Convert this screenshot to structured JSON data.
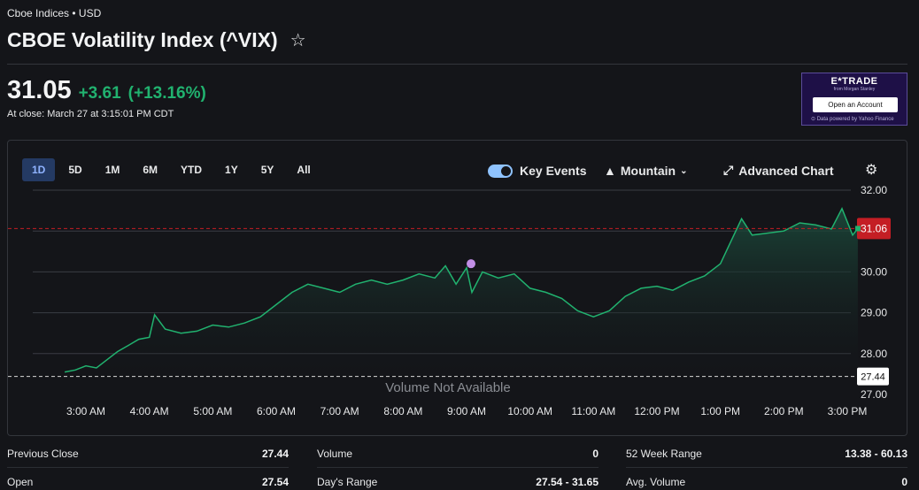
{
  "header": {
    "breadcrumb": "Cboe Indices • USD",
    "title": "CBOE Volatility Index (^VIX)",
    "star_icon": "star-outline-icon"
  },
  "quote": {
    "price": "31.05",
    "change": "+3.61",
    "change_pct": "(+13.16%)",
    "close_note": "At close: March 27 at 3:15:01 PM CDT",
    "positive_color": "#21b26f"
  },
  "ad": {
    "logo": "E*TRADE",
    "sub": "from Morgan Stanley",
    "button": "Open an Account",
    "footer": "Data powered by Yahoo Finance"
  },
  "toolbar": {
    "ranges": [
      "1D",
      "5D",
      "1M",
      "6M",
      "YTD",
      "1Y",
      "5Y",
      "All"
    ],
    "active_range": "1D",
    "key_events_label": "Key Events",
    "key_events_on": true,
    "chart_type_label": "Mountain",
    "advanced_label": "Advanced Chart",
    "settings_icon": "gear-icon",
    "expand_icon": "expand-arrows-icon",
    "mountain_icon": "mountain-icon",
    "chevron_icon": "chevron-down-icon"
  },
  "chart_data": {
    "type": "area",
    "x_labels": [
      "3:00 AM",
      "4:00 AM",
      "5:00 AM",
      "6:00 AM",
      "7:00 AM",
      "8:00 AM",
      "9:00 AM",
      "10:00 AM",
      "11:00 AM",
      "12:00 PM",
      "1:00 PM",
      "2:00 PM",
      "3:00 PM"
    ],
    "y_ticks": [
      "32.00",
      "31.00",
      "30.00",
      "29.00",
      "28.00",
      "27.00"
    ],
    "ylim": [
      27.0,
      32.0
    ],
    "current_price_label": "31.06",
    "previous_close_label": "27.44",
    "current_price": 31.06,
    "previous_close": 27.44,
    "key_event_label": "",
    "key_event_x": "9:00 AM",
    "key_event_y": 30.2,
    "volume_note": "Volume Not Available",
    "line_color": "#21b26f",
    "price_tag_color": "#c41e24",
    "event_color": "#c28ee6",
    "series": [
      {
        "x": "2:40 AM",
        "y": 27.55
      },
      {
        "x": "2:50 AM",
        "y": 27.6
      },
      {
        "x": "3:00 AM",
        "y": 27.7
      },
      {
        "x": "3:10 AM",
        "y": 27.65
      },
      {
        "x": "3:20 AM",
        "y": 27.85
      },
      {
        "x": "3:30 AM",
        "y": 28.05
      },
      {
        "x": "3:40 AM",
        "y": 28.2
      },
      {
        "x": "3:50 AM",
        "y": 28.35
      },
      {
        "x": "4:00 AM",
        "y": 28.4
      },
      {
        "x": "4:05 AM",
        "y": 28.95
      },
      {
        "x": "4:15 AM",
        "y": 28.6
      },
      {
        "x": "4:30 AM",
        "y": 28.5
      },
      {
        "x": "4:45 AM",
        "y": 28.55
      },
      {
        "x": "5:00 AM",
        "y": 28.7
      },
      {
        "x": "5:15 AM",
        "y": 28.65
      },
      {
        "x": "5:30 AM",
        "y": 28.75
      },
      {
        "x": "5:45 AM",
        "y": 28.9
      },
      {
        "x": "6:00 AM",
        "y": 29.2
      },
      {
        "x": "6:15 AM",
        "y": 29.5
      },
      {
        "x": "6:30 AM",
        "y": 29.7
      },
      {
        "x": "6:45 AM",
        "y": 29.6
      },
      {
        "x": "7:00 AM",
        "y": 29.5
      },
      {
        "x": "7:15 AM",
        "y": 29.7
      },
      {
        "x": "7:30 AM",
        "y": 29.8
      },
      {
        "x": "7:45 AM",
        "y": 29.7
      },
      {
        "x": "8:00 AM",
        "y": 29.8
      },
      {
        "x": "8:15 AM",
        "y": 29.95
      },
      {
        "x": "8:30 AM",
        "y": 29.85
      },
      {
        "x": "8:40 AM",
        "y": 30.15
      },
      {
        "x": "8:50 AM",
        "y": 29.7
      },
      {
        "x": "9:00 AM",
        "y": 30.1
      },
      {
        "x": "9:05 AM",
        "y": 29.5
      },
      {
        "x": "9:15 AM",
        "y": 30.0
      },
      {
        "x": "9:30 AM",
        "y": 29.85
      },
      {
        "x": "9:45 AM",
        "y": 29.95
      },
      {
        "x": "10:00 AM",
        "y": 29.6
      },
      {
        "x": "10:15 AM",
        "y": 29.5
      },
      {
        "x": "10:30 AM",
        "y": 29.35
      },
      {
        "x": "10:45 AM",
        "y": 29.05
      },
      {
        "x": "11:00 AM",
        "y": 28.9
      },
      {
        "x": "11:15 AM",
        "y": 29.05
      },
      {
        "x": "11:30 AM",
        "y": 29.4
      },
      {
        "x": "11:45 AM",
        "y": 29.6
      },
      {
        "x": "12:00 PM",
        "y": 29.65
      },
      {
        "x": "12:15 PM",
        "y": 29.55
      },
      {
        "x": "12:30 PM",
        "y": 29.75
      },
      {
        "x": "12:45 PM",
        "y": 29.9
      },
      {
        "x": "1:00 PM",
        "y": 30.2
      },
      {
        "x": "1:10 PM",
        "y": 30.75
      },
      {
        "x": "1:20 PM",
        "y": 31.3
      },
      {
        "x": "1:30 PM",
        "y": 30.9
      },
      {
        "x": "1:45 PM",
        "y": 30.95
      },
      {
        "x": "2:00 PM",
        "y": 31.0
      },
      {
        "x": "2:15 PM",
        "y": 31.2
      },
      {
        "x": "2:30 PM",
        "y": 31.15
      },
      {
        "x": "2:45 PM",
        "y": 31.05
      },
      {
        "x": "2:55 PM",
        "y": 31.55
      },
      {
        "x": "3:05 PM",
        "y": 30.9
      },
      {
        "x": "3:10 PM",
        "y": 31.06
      }
    ]
  },
  "stats": {
    "col1": [
      {
        "label": "Previous Close",
        "value": "27.44"
      },
      {
        "label": "Open",
        "value": "27.54"
      }
    ],
    "col2": [
      {
        "label": "Volume",
        "value": "0"
      },
      {
        "label": "Day's Range",
        "value": "27.54 - 31.65"
      }
    ],
    "col3": [
      {
        "label": "52 Week Range",
        "value": "13.38 - 60.13"
      },
      {
        "label": "Avg. Volume",
        "value": "0"
      }
    ]
  }
}
